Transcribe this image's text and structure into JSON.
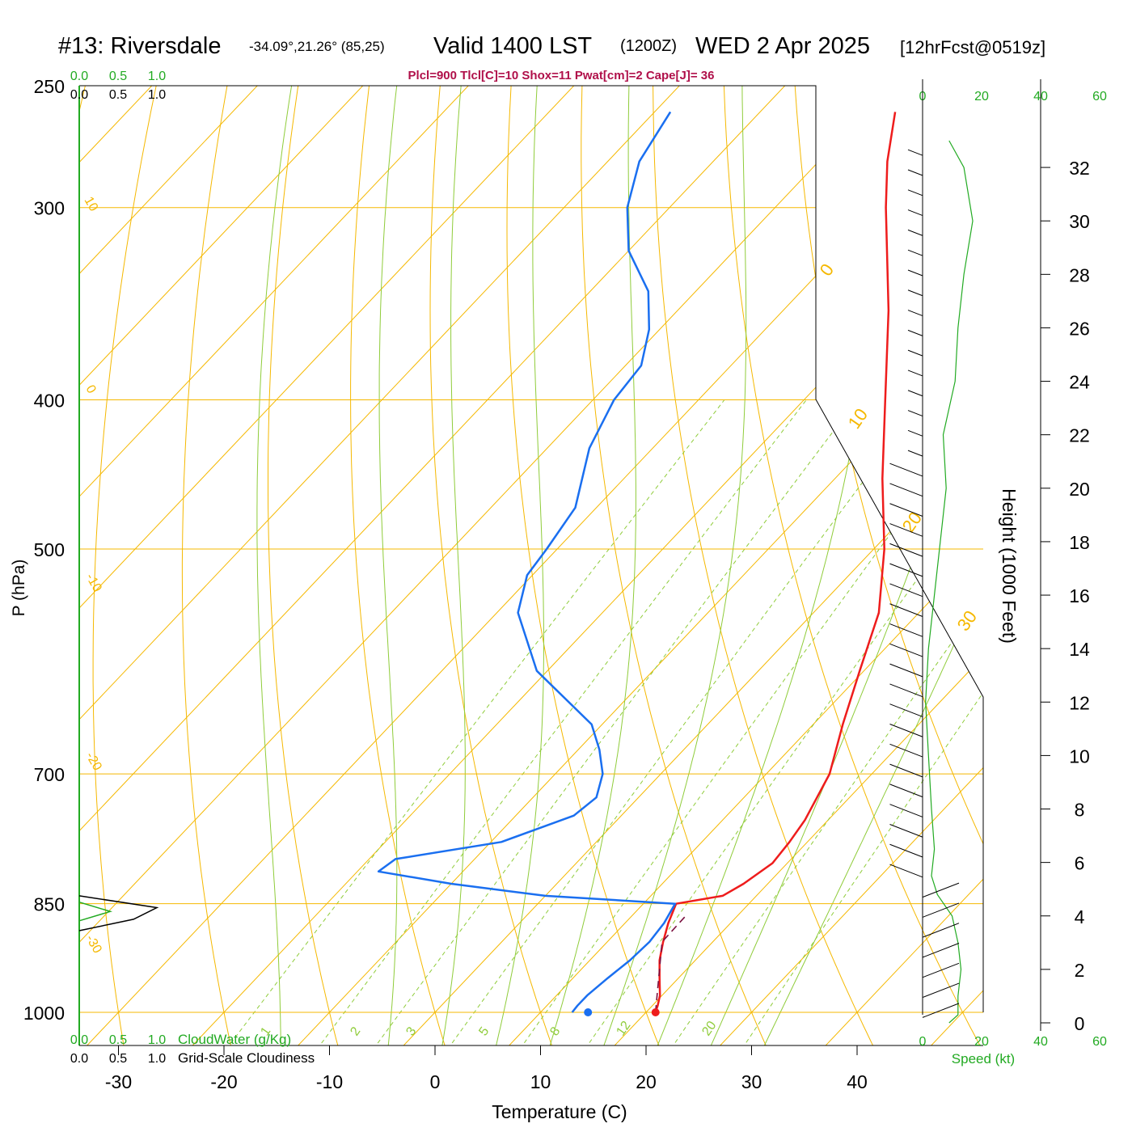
{
  "header": {
    "title": "#13: Riversdale",
    "location": "-34.09°,21.26° (85,25)",
    "valid": "Valid 1400 LST",
    "zulu": "(1200Z)",
    "date": "WED 2 Apr 2025",
    "forecast": "[12hrFcst@0519z]",
    "indices": "Plcl=900 Tlcl[C]=10 Shox=11 Pwat[cm]=2 Cape[J]= 36"
  },
  "colors": {
    "isotherm": "#f5b800",
    "mixing_ratio": "#8fcc3a",
    "adiabat": "#8fcc3a",
    "temperature": "#ee1c1c",
    "dewpoint": "#1a6ff0",
    "parcel": "#7a1040",
    "green_label": "#22aa22",
    "index_text": "#b0104a"
  },
  "chart_data": {
    "type": "line",
    "title": "#13: Riversdale",
    "xlabel": "Temperature (C)",
    "ylabel": "P (hPa)",
    "right_ylabel": "Height (1000 Feet)",
    "xlim": [
      -34,
      36
    ],
    "ylim": [
      1000,
      250
    ],
    "x_ticks": [
      -30,
      -20,
      -10,
      0,
      10,
      20,
      30,
      40
    ],
    "pressure_ticks": [
      250,
      300,
      400,
      500,
      700,
      850,
      1000
    ],
    "height_ticks": [
      0,
      2,
      4,
      6,
      8,
      10,
      12,
      14,
      16,
      18,
      20,
      22,
      24,
      26,
      28,
      30,
      32
    ],
    "isotherm_labels": [
      "0",
      "10",
      "20",
      "30",
      "10",
      "0",
      "-10",
      "-20",
      "-30"
    ],
    "mixing_ratio_labels": [
      "1",
      "2",
      "3",
      "5",
      "8",
      "12",
      "20"
    ],
    "series": [
      {
        "kind": "temperature",
        "points": [
          [
            1000,
            20.9
          ],
          [
            990,
            20.5
          ],
          [
            975,
            19.8
          ],
          [
            950,
            18.2
          ],
          [
            925,
            16.6
          ],
          [
            900,
            15.3
          ],
          [
            875,
            14.1
          ],
          [
            850,
            13.1
          ],
          [
            840,
            16.8
          ],
          [
            825,
            17.7
          ],
          [
            800,
            18.6
          ],
          [
            775,
            18.3
          ],
          [
            750,
            17.8
          ],
          [
            700,
            16.0
          ],
          [
            650,
            12.8
          ],
          [
            600,
            9.6
          ],
          [
            550,
            6.2
          ],
          [
            500,
            1.0
          ],
          [
            450,
            -5.5
          ],
          [
            400,
            -12.3
          ],
          [
            350,
            -20.0
          ],
          [
            300,
            -29.5
          ],
          [
            280,
            -33.5
          ],
          [
            260,
            -37.2
          ]
        ]
      },
      {
        "kind": "dewpoint",
        "points": [
          [
            1000,
            13.0
          ],
          [
            990,
            12.9
          ],
          [
            975,
            12.9
          ],
          [
            950,
            13.3
          ],
          [
            925,
            13.8
          ],
          [
            900,
            14.0
          ],
          [
            875,
            13.7
          ],
          [
            850,
            13.0
          ],
          [
            840,
            0.0
          ],
          [
            825,
            -10.0
          ],
          [
            810,
            -18.0
          ],
          [
            795,
            -17.5
          ],
          [
            775,
            -9.0
          ],
          [
            745,
            -4.5
          ],
          [
            725,
            -4.0
          ],
          [
            700,
            -5.5
          ],
          [
            675,
            -8.0
          ],
          [
            650,
            -11.0
          ],
          [
            600,
            -21.0
          ],
          [
            550,
            -28.0
          ],
          [
            520,
            -30.5
          ],
          [
            500,
            -31.0
          ],
          [
            470,
            -32.0
          ],
          [
            430,
            -36.0
          ],
          [
            400,
            -38.0
          ],
          [
            380,
            -38.5
          ],
          [
            360,
            -41.0
          ],
          [
            340,
            -44.5
          ],
          [
            320,
            -50.0
          ],
          [
            300,
            -54.0
          ],
          [
            280,
            -57.0
          ],
          [
            260,
            -58.5
          ]
        ]
      },
      {
        "kind": "parcel",
        "points": [
          [
            1000,
            20.9
          ],
          [
            900,
            15.2
          ],
          [
            865,
            15.1
          ]
        ]
      }
    ],
    "surface_temperature_marker": 20.9,
    "surface_dewpoint_marker": 14.5,
    "wind_speed_axis": {
      "label": "Speed (kt)",
      "ticks": [
        "0",
        "20",
        "40",
        "60"
      ],
      "max": 60,
      "profile": [
        [
          0.0,
          9
        ],
        [
          0.3,
          12
        ],
        [
          1.0,
          12
        ],
        [
          2.0,
          13
        ],
        [
          3.0,
          12
        ],
        [
          4.0,
          10
        ],
        [
          4.8,
          5
        ],
        [
          5.5,
          3
        ],
        [
          6.5,
          4
        ],
        [
          8.0,
          3
        ],
        [
          10.0,
          2
        ],
        [
          12.0,
          1
        ],
        [
          14.0,
          2
        ],
        [
          16.0,
          4
        ],
        [
          18.0,
          6
        ],
        [
          20.0,
          8
        ],
        [
          22.0,
          7
        ],
        [
          24.0,
          11
        ],
        [
          26.0,
          12
        ],
        [
          28.0,
          14
        ],
        [
          30.0,
          17
        ],
        [
          32.0,
          14
        ],
        [
          33.0,
          9
        ]
      ]
    },
    "cloud_water": {
      "label": "CloudWater (g/Kg)",
      "ticks": [
        "0.0",
        "0.5",
        "1.0"
      ]
    },
    "cloudiness": {
      "label": "Grid-Scale Cloudiness",
      "ticks": [
        "0.0",
        "0.5",
        "1.0"
      ],
      "profile": [
        [
          840,
          0.0
        ],
        [
          855,
          1.0
        ],
        [
          870,
          0.7
        ],
        [
          885,
          0.0
        ]
      ]
    },
    "cloud_water_profile": [
      [
        848,
        0.0
      ],
      [
        860,
        0.4
      ],
      [
        872,
        0.0
      ]
    ]
  }
}
